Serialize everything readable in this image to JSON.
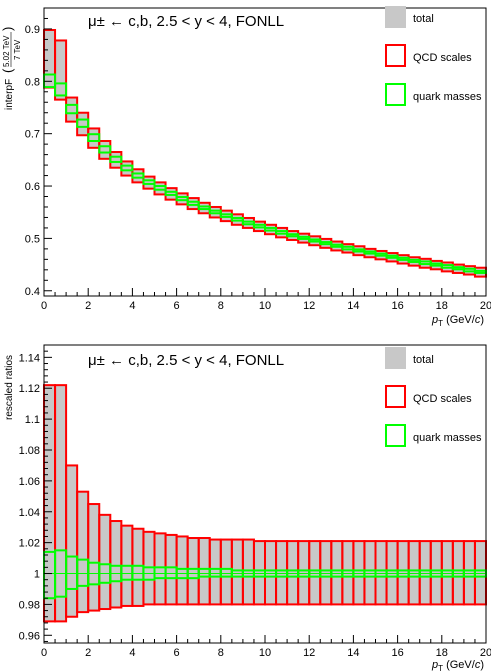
{
  "chart_data": [
    {
      "type": "bar",
      "title": "μ± ← c,b, 2.5 < y < 4, FONLL",
      "ylabel": "interpF(5.02 TeV / 7 TeV)",
      "ylabel_main": "interpF",
      "ylabel_num": "5.02 TeV",
      "ylabel_den": "7 TeV",
      "xlabel": "pT (GeV/c)",
      "xlabel_p": "p",
      "xlabel_sub": "T",
      "xlabel_units_a": " (GeV/",
      "xlabel_units_c": "c",
      "xlabel_units_b": ")",
      "xlim": [
        0,
        20
      ],
      "ylim": [
        0.39,
        0.94
      ],
      "xticks": [
        0,
        2,
        4,
        6,
        8,
        10,
        12,
        14,
        16,
        18,
        20
      ],
      "yticks": [
        0.4,
        0.5,
        0.6,
        0.7,
        0.8,
        0.9
      ],
      "ytick_labels": [
        "0.4",
        "0.5",
        "0.6",
        "0.7",
        "0.8",
        "0.9"
      ],
      "bin_width": 0.5,
      "legend": [
        {
          "name": "total",
          "color": "#c8c8c8",
          "style": "fill"
        },
        {
          "name": "QCD scales",
          "color": "#ff0000",
          "style": "box"
        },
        {
          "name": "quark masses",
          "color": "#00ff00",
          "style": "box"
        }
      ],
      "legend_position": "top-right",
      "series": [
        {
          "name": "total",
          "style": "fill",
          "color": "#c8c8c8"
        },
        {
          "name": "QCD scales",
          "style": "box",
          "color": "#ff0000"
        },
        {
          "name": "quark masses",
          "style": "box",
          "color": "#00ff00"
        }
      ],
      "qcd_bins": [
        [
          0.0,
          0.5,
          0.788,
          0.898
        ],
        [
          0.5,
          1.0,
          0.765,
          0.878
        ],
        [
          1.0,
          1.5,
          0.723,
          0.769
        ],
        [
          1.5,
          2.0,
          0.697,
          0.74
        ],
        [
          2.0,
          2.5,
          0.673,
          0.71
        ],
        [
          2.5,
          3.0,
          0.652,
          0.686
        ],
        [
          3.0,
          3.5,
          0.635,
          0.665
        ],
        [
          3.5,
          4.0,
          0.62,
          0.647
        ],
        [
          4.0,
          4.5,
          0.607,
          0.632
        ],
        [
          4.5,
          5.0,
          0.595,
          0.618
        ],
        [
          5.0,
          5.5,
          0.584,
          0.607
        ],
        [
          5.5,
          6.0,
          0.574,
          0.596
        ],
        [
          6.0,
          6.5,
          0.565,
          0.586
        ],
        [
          6.5,
          7.0,
          0.556,
          0.577
        ],
        [
          7.0,
          7.5,
          0.548,
          0.568
        ],
        [
          7.5,
          8.0,
          0.54,
          0.56
        ],
        [
          8.0,
          8.5,
          0.533,
          0.553
        ],
        [
          8.5,
          9.0,
          0.526,
          0.546
        ],
        [
          9.0,
          9.5,
          0.52,
          0.539
        ],
        [
          9.5,
          10.0,
          0.514,
          0.532
        ],
        [
          10.0,
          10.5,
          0.508,
          0.526
        ],
        [
          10.5,
          11.0,
          0.502,
          0.52
        ],
        [
          11.0,
          11.5,
          0.497,
          0.514
        ],
        [
          11.5,
          12.0,
          0.492,
          0.509
        ],
        [
          12.0,
          12.5,
          0.487,
          0.504
        ],
        [
          12.5,
          13.0,
          0.482,
          0.499
        ],
        [
          13.0,
          13.5,
          0.477,
          0.494
        ],
        [
          13.5,
          14.0,
          0.473,
          0.489
        ],
        [
          14.0,
          14.5,
          0.468,
          0.485
        ],
        [
          14.5,
          15.0,
          0.464,
          0.48
        ],
        [
          15.0,
          15.5,
          0.46,
          0.476
        ],
        [
          15.5,
          16.0,
          0.456,
          0.472
        ],
        [
          16.0,
          16.5,
          0.452,
          0.468
        ],
        [
          16.5,
          17.0,
          0.448,
          0.464
        ],
        [
          17.0,
          17.5,
          0.444,
          0.461
        ],
        [
          17.5,
          18.0,
          0.441,
          0.457
        ],
        [
          18.0,
          18.5,
          0.437,
          0.454
        ],
        [
          18.5,
          19.0,
          0.434,
          0.45
        ],
        [
          19.0,
          19.5,
          0.431,
          0.447
        ],
        [
          19.5,
          20.0,
          0.427,
          0.444
        ]
      ],
      "mass_bins": [
        [
          0.0,
          0.5,
          0.789,
          0.813
        ],
        [
          0.5,
          1.0,
          0.773,
          0.796
        ],
        [
          1.0,
          1.5,
          0.739,
          0.755
        ],
        [
          1.5,
          2.0,
          0.713,
          0.727
        ],
        [
          2.0,
          2.5,
          0.686,
          0.699
        ],
        [
          2.5,
          3.0,
          0.664,
          0.676
        ],
        [
          3.0,
          3.5,
          0.646,
          0.656
        ],
        [
          3.5,
          4.0,
          0.63,
          0.639
        ],
        [
          4.0,
          4.5,
          0.616,
          0.624
        ],
        [
          4.5,
          5.0,
          0.604,
          0.611
        ],
        [
          5.0,
          5.5,
          0.593,
          0.6
        ],
        [
          5.5,
          6.0,
          0.583,
          0.589
        ],
        [
          6.0,
          6.5,
          0.573,
          0.579
        ],
        [
          6.5,
          7.0,
          0.564,
          0.57
        ],
        [
          7.0,
          7.5,
          0.556,
          0.561
        ],
        [
          7.5,
          8.0,
          0.548,
          0.553
        ],
        [
          8.0,
          8.5,
          0.541,
          0.546
        ],
        [
          8.5,
          9.0,
          0.534,
          0.539
        ],
        [
          9.0,
          9.5,
          0.527,
          0.532
        ],
        [
          9.5,
          10.0,
          0.521,
          0.526
        ],
        [
          10.0,
          10.5,
          0.515,
          0.52
        ],
        [
          10.5,
          11.0,
          0.509,
          0.514
        ],
        [
          11.0,
          11.5,
          0.504,
          0.508
        ],
        [
          11.5,
          12.0,
          0.499,
          0.503
        ],
        [
          12.0,
          12.5,
          0.494,
          0.498
        ],
        [
          12.5,
          13.0,
          0.489,
          0.493
        ],
        [
          13.0,
          13.5,
          0.484,
          0.488
        ],
        [
          13.5,
          14.0,
          0.479,
          0.484
        ],
        [
          14.0,
          14.5,
          0.475,
          0.479
        ],
        [
          14.5,
          15.0,
          0.471,
          0.475
        ],
        [
          15.0,
          15.5,
          0.467,
          0.471
        ],
        [
          15.5,
          16.0,
          0.463,
          0.467
        ],
        [
          16.0,
          16.5,
          0.459,
          0.463
        ],
        [
          16.5,
          17.0,
          0.455,
          0.459
        ],
        [
          17.0,
          17.5,
          0.451,
          0.456
        ],
        [
          17.5,
          18.0,
          0.448,
          0.452
        ],
        [
          18.0,
          18.5,
          0.444,
          0.449
        ],
        [
          18.5,
          19.0,
          0.441,
          0.445
        ],
        [
          19.0,
          19.5,
          0.437,
          0.442
        ],
        [
          19.5,
          20.0,
          0.434,
          0.438
        ]
      ]
    },
    {
      "type": "bar",
      "title": "μ± ← c,b, 2.5 < y < 4, FONLL",
      "ylabel": "rescaled ratios",
      "xlabel": "pT (GeV/c)",
      "xlabel_p": "p",
      "xlabel_sub": "T",
      "xlabel_units_a": " (GeV/",
      "xlabel_units_c": "c",
      "xlabel_units_b": ")",
      "xlim": [
        0,
        20
      ],
      "ylim": [
        0.955,
        1.148
      ],
      "xticks": [
        0,
        2,
        4,
        6,
        8,
        10,
        12,
        14,
        16,
        18,
        20
      ],
      "yticks": [
        0.96,
        0.98,
        1.0,
        1.02,
        1.04,
        1.06,
        1.08,
        1.1,
        1.12,
        1.14
      ],
      "ytick_labels": [
        "0.96",
        "0.98",
        "1",
        "1.02",
        "1.04",
        "1.06",
        "1.08",
        "1.1",
        "1.12",
        "1.14"
      ],
      "bin_width": 0.5,
      "legend": [
        {
          "name": "total",
          "color": "#c8c8c8",
          "style": "fill"
        },
        {
          "name": "QCD scales",
          "color": "#ff0000",
          "style": "box"
        },
        {
          "name": "quark masses",
          "color": "#00ff00",
          "style": "box"
        }
      ],
      "legend_position": "top-right",
      "series": [
        {
          "name": "total",
          "style": "fill",
          "color": "#c8c8c8"
        },
        {
          "name": "QCD scales",
          "style": "box",
          "color": "#ff0000"
        },
        {
          "name": "quark masses",
          "style": "box",
          "color": "#00ff00"
        }
      ],
      "qcd_lo": [
        0.969,
        0.969,
        0.972,
        0.975,
        0.976,
        0.977,
        0.978,
        0.979,
        0.979,
        0.98,
        0.98,
        0.98,
        0.98,
        0.98,
        0.98,
        0.98,
        0.98,
        0.98,
        0.98,
        0.98,
        0.98,
        0.98,
        0.98,
        0.98,
        0.98,
        0.98,
        0.98,
        0.98,
        0.98,
        0.98,
        0.98,
        0.98,
        0.98,
        0.98,
        0.98,
        0.98,
        0.98,
        0.98,
        0.98,
        0.98
      ],
      "qcd_hi": [
        1.122,
        1.122,
        1.07,
        1.053,
        1.045,
        1.038,
        1.034,
        1.031,
        1.029,
        1.027,
        1.026,
        1.025,
        1.024,
        1.023,
        1.023,
        1.022,
        1.022,
        1.022,
        1.022,
        1.021,
        1.021,
        1.021,
        1.021,
        1.021,
        1.021,
        1.021,
        1.021,
        1.021,
        1.021,
        1.021,
        1.021,
        1.021,
        1.021,
        1.021,
        1.021,
        1.021,
        1.021,
        1.021,
        1.021,
        1.021
      ],
      "mass_lo": [
        0.984,
        0.985,
        0.99,
        0.992,
        0.993,
        0.994,
        0.995,
        0.996,
        0.996,
        0.996,
        0.997,
        0.997,
        0.997,
        0.997,
        0.998,
        0.998,
        0.998,
        0.998,
        0.998,
        0.998,
        0.998,
        0.998,
        0.998,
        0.998,
        0.998,
        0.998,
        0.998,
        0.998,
        0.998,
        0.998,
        0.998,
        0.998,
        0.998,
        0.998,
        0.998,
        0.998,
        0.998,
        0.998,
        0.998,
        0.998
      ],
      "mass_hi": [
        1.014,
        1.015,
        1.011,
        1.009,
        1.007,
        1.006,
        1.005,
        1.005,
        1.005,
        1.004,
        1.004,
        1.004,
        1.003,
        1.003,
        1.003,
        1.003,
        1.003,
        1.002,
        1.002,
        1.002,
        1.002,
        1.002,
        1.002,
        1.002,
        1.002,
        1.002,
        1.002,
        1.002,
        1.002,
        1.002,
        1.002,
        1.002,
        1.002,
        1.002,
        1.002,
        1.002,
        1.002,
        1.002,
        1.002,
        1.002
      ]
    }
  ]
}
